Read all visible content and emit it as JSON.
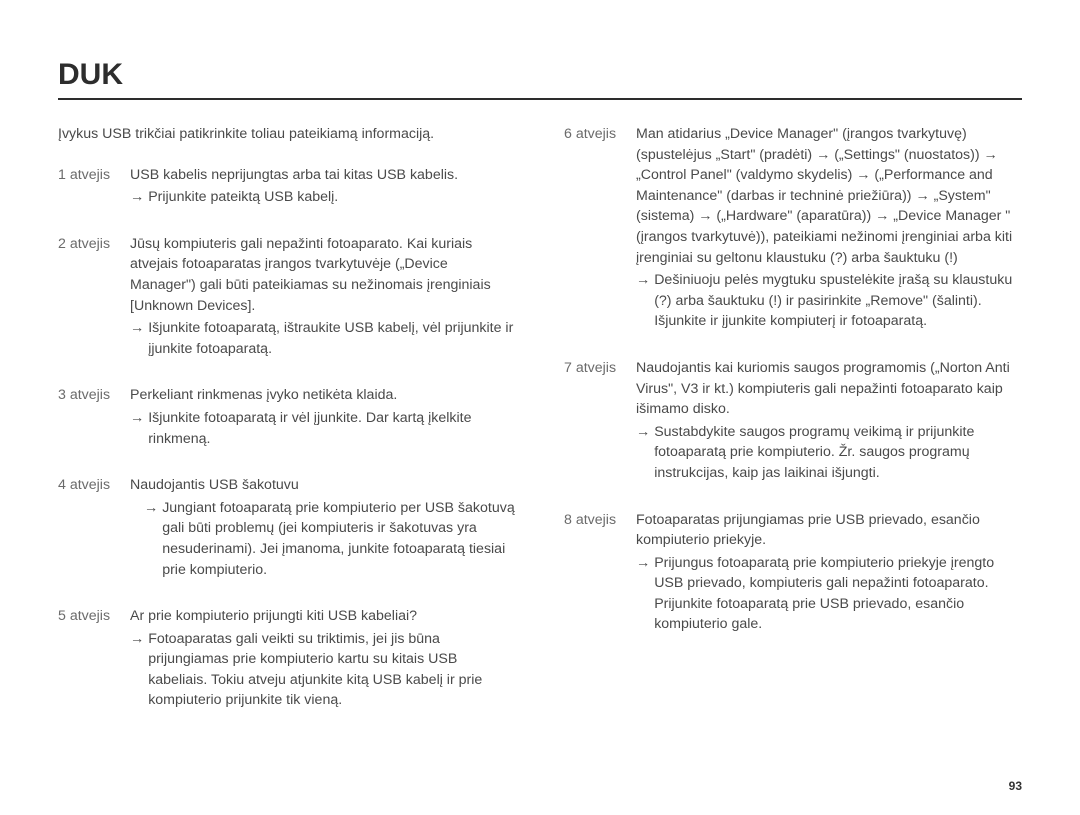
{
  "page": {
    "title": "DUK",
    "intro": "Įvykus USB trikčiai patikrinkite toliau pateikiamą informaciją.",
    "page_number": "93"
  },
  "left": {
    "c1": {
      "label": "1 atvejis",
      "p1": "USB kabelis neprijungtas arba tai kitas USB kabelis.",
      "a1": "Prijunkite pateiktą USB kabelį."
    },
    "c2": {
      "label": "2 atvejis",
      "p1": "Jūsų kompiuteris gali nepažinti fotoaparato. Kai kuriais atvejais fotoaparatas įrangos tvarkytuvėje („Device Manager\") gali būti pateikiamas su nežinomais įrenginiais [Unknown Devices].",
      "a1": "Išjunkite fotoaparatą, ištraukite USB kabelį, vėl prijunkite ir įjunkite fotoaparatą."
    },
    "c3": {
      "label": "3 atvejis",
      "p1": "Perkeliant rinkmenas įvyko netikėta klaida.",
      "a1": "Išjunkite fotoaparatą ir vėl įjunkite. Dar kartą įkelkite rinkmeną."
    },
    "c4": {
      "label": "4 atvejis",
      "p1": "Naudojantis USB šakotuvu",
      "a1": "Jungiant fotoaparatą prie kompiuterio per USB šakotuvą gali būti problemų (jei kompiuteris ir šakotuvas yra nesuderinami). Jei įmanoma, junkite fotoaparatą tiesiai prie kompiuterio."
    },
    "c5": {
      "label": "5 atvejis",
      "p1": "Ar prie kompiuterio prijungti kiti USB kabeliai?",
      "a1": "Fotoaparatas gali veikti su triktimis, jei jis būna prijungiamas prie kompiuterio kartu su kitais USB kabeliais. Tokiu atveju atjunkite kitą USB kabelį ir prie kompiuterio prijunkite tik vieną."
    }
  },
  "right": {
    "c6": {
      "label": "6 atvejis",
      "p1": "Man atidarius „Device Manager\" (įrangos tvarkytuvę) (spustelėjus „Start\" (pradėti) → („Settings\" (nuostatos)) → „Control Panel\" (valdymo skydelis) → („Performance and Maintenance\" (darbas ir techninė priežiūra)) → „System\" (sistema) → („Hardware\" (aparatūra)) → „Device Manager \" (įrangos tvarkytuvė)), pateikiami nežinomi įrenginiai arba kiti įrenginiai su geltonu klaustuku (?) arba šauktuku (!)",
      "a1": "Dešiniuoju pelės mygtuku spustelėkite įrašą su klaustuku (?) arba šauktuku (!) ir pasirinkite „Remove\" (šalinti). Išjunkite ir įjunkite kompiuterį ir fotoaparatą."
    },
    "c7": {
      "label": "7 atvejis",
      "p1": "Naudojantis kai kuriomis saugos programomis („Norton Anti Virus\", V3 ir kt.) kompiuteris gali nepažinti fotoaparato kaip išimamo disko.",
      "a1": "Sustabdykite saugos programų veikimą ir prijunkite fotoaparatą prie kompiuterio. Žr. saugos programų instrukcijas, kaip jas laikinai išjungti."
    },
    "c8": {
      "label": "8 atvejis",
      "p1": "Fotoaparatas prijungiamas prie USB prievado, esančio kompiuterio priekyje.",
      "a1": "Prijungus fotoaparatą prie kompiuterio priekyje įrengto USB prievado, kompiuteris gali nepažinti fotoaparato. Prijunkite fotoaparatą prie USB prievado, esančio kompiuterio gale."
    }
  }
}
